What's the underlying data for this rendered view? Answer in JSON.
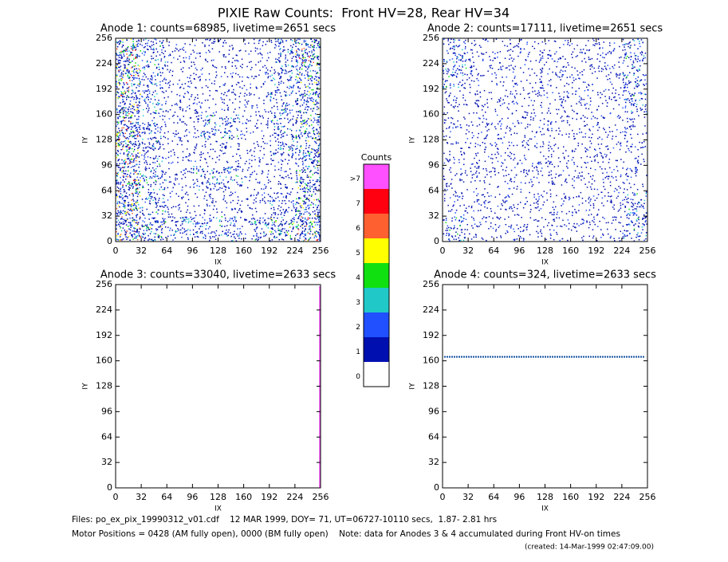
{
  "title": "PIXIE Raw Counts:  Front HV=28, Rear HV=34",
  "colorbar": {
    "title": "Counts",
    "labels": [
      ">7",
      "7",
      "6",
      "5",
      "4",
      "3",
      "2",
      "1",
      "0"
    ],
    "colors": [
      "#ff50ff",
      "#ff0010",
      "#ff6030",
      "#ffff00",
      "#10e010",
      "#20c8c8",
      "#2050ff",
      "#0010b0",
      "#ffffff"
    ]
  },
  "footer": [
    "Files: po_ex_pix_19990312_v01.cdf    12 MAR 1999, DOY= 71, UT=06727-10110 secs,  1.87- 2.81 hrs",
    "Motor Positions = 0428 (AM fully open), 0000 (BM fully open)    Note: data for Anodes 3 & 4 accumulated during Front HV-on times",
    "(created: 14-Mar-1999 02:47:09.00)"
  ],
  "chart_data": [
    {
      "type": "heatmap",
      "title": "Anode 1: counts=68985, livetime=2651 secs",
      "xlabel": "IX",
      "ylabel": "IY",
      "xlim": [
        0,
        256
      ],
      "ylim": [
        0,
        256
      ],
      "xticks": [
        0,
        32,
        64,
        96,
        128,
        160,
        192,
        224,
        256
      ],
      "yticks": [
        0,
        32,
        64,
        96,
        128,
        160,
        192,
        224,
        256
      ],
      "values": [
        [
          4,
          2,
          1,
          1,
          1,
          1,
          2,
          4
        ],
        [
          4,
          2,
          1,
          1,
          1,
          1,
          2,
          3
        ],
        [
          4,
          2,
          1,
          1,
          1,
          1,
          2,
          3
        ],
        [
          4,
          2,
          1,
          2,
          2,
          1,
          2,
          3
        ],
        [
          4,
          2,
          1,
          1,
          1,
          1,
          2,
          3
        ],
        [
          4,
          2,
          1,
          2,
          2,
          1,
          1,
          3
        ],
        [
          4,
          2,
          1,
          1,
          1,
          1,
          2,
          3
        ],
        [
          4,
          3,
          2,
          2,
          2,
          2,
          3,
          4
        ]
      ]
    },
    {
      "type": "heatmap",
      "title": "Anode 2: counts=17111, livetime=2651 secs",
      "xlabel": "IX",
      "ylabel": "IY",
      "xlim": [
        0,
        256
      ],
      "ylim": [
        0,
        256
      ],
      "xticks": [
        0,
        32,
        64,
        96,
        128,
        160,
        192,
        224,
        256
      ],
      "yticks": [
        0,
        32,
        64,
        96,
        128,
        160,
        192,
        224,
        256
      ],
      "values": [
        [
          2,
          1,
          1,
          1,
          1,
          1,
          1,
          2
        ],
        [
          2,
          1,
          1,
          1,
          1,
          1,
          1,
          2
        ],
        [
          1,
          1,
          1,
          1,
          1,
          1,
          1,
          2
        ],
        [
          1,
          1,
          1,
          1,
          1,
          1,
          1,
          1
        ],
        [
          1,
          1,
          1,
          1,
          1,
          1,
          1,
          1
        ],
        [
          1,
          1,
          1,
          1,
          1,
          1,
          1,
          1
        ],
        [
          1,
          1,
          1,
          1,
          1,
          1,
          1,
          2
        ],
        [
          2,
          1,
          1,
          1,
          1,
          1,
          1,
          2
        ]
      ]
    },
    {
      "type": "heatmap",
      "title": "Anode 3: counts=33040, livetime=2633 secs",
      "xlabel": "IX",
      "ylabel": "IY",
      "xlim": [
        0,
        256
      ],
      "ylim": [
        0,
        256
      ],
      "xticks": [
        0,
        32,
        64,
        96,
        128,
        160,
        192,
        224,
        256
      ],
      "yticks": [
        0,
        32,
        64,
        96,
        128,
        160,
        192,
        224,
        256
      ],
      "vline": {
        "x": 255,
        "color": "#ff50ff"
      }
    },
    {
      "type": "heatmap",
      "title": "Anode 4: counts=324, livetime=2633 secs",
      "xlabel": "IX",
      "ylabel": "IY",
      "xlim": [
        0,
        256
      ],
      "ylim": [
        0,
        256
      ],
      "xticks": [
        0,
        32,
        64,
        96,
        128,
        160,
        192,
        224,
        256
      ],
      "yticks": [
        0,
        32,
        64,
        96,
        128,
        160,
        192,
        224,
        256
      ],
      "hline": {
        "y": 165,
        "color": "#1050a0"
      }
    }
  ]
}
